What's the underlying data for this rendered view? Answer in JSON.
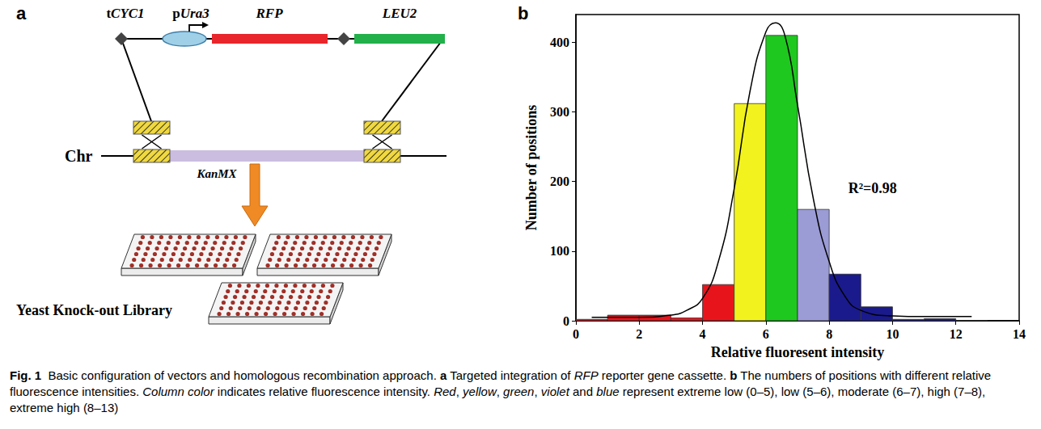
{
  "figure": {
    "panel_a": {
      "letter": "a",
      "labels": {
        "terminator": [
          {
            "text": "t",
            "style": "bold"
          },
          {
            "text": "CYC1",
            "style": "bold-italic"
          }
        ],
        "promoter": [
          {
            "text": "p",
            "style": "bold"
          },
          {
            "text": "Ura3",
            "style": "bold-italic"
          }
        ],
        "reporter": [
          {
            "text": "RFP",
            "style": "bold-italic"
          }
        ],
        "marker": [
          {
            "text": "LEU2",
            "style": "bold-italic"
          }
        ],
        "chromosome": [
          {
            "text": "Chr",
            "style": "bold"
          }
        ],
        "deletion": [
          {
            "text": "KanMX",
            "style": "bold-italic"
          }
        ],
        "library": [
          {
            "text": "Yeast Knock-out Library",
            "style": "bold"
          }
        ]
      }
    },
    "panel_b": {
      "letter": "b"
    },
    "caption": [
      {
        "text": "Fig. 1",
        "style": "bold"
      },
      {
        "text": "  Basic configuration of vectors and homologous recombination approach. ",
        "style": "normal"
      },
      {
        "text": "a",
        "style": "bold"
      },
      {
        "text": " Targeted integration of ",
        "style": "normal"
      },
      {
        "text": "RFP",
        "style": "italic"
      },
      {
        "text": " reporter gene cassette. ",
        "style": "normal"
      },
      {
        "text": "b",
        "style": "bold"
      },
      {
        "text": " The numbers of positions with different relative fluorescence intensities. ",
        "style": "normal"
      },
      {
        "text": "Column color",
        "style": "italic"
      },
      {
        "text": " indicates relative fluorescence intensity. ",
        "style": "normal"
      },
      {
        "text": "Red",
        "style": "italic"
      },
      {
        "text": ", ",
        "style": "normal"
      },
      {
        "text": "yellow",
        "style": "italic"
      },
      {
        "text": ", ",
        "style": "normal"
      },
      {
        "text": "green",
        "style": "italic"
      },
      {
        "text": ", ",
        "style": "normal"
      },
      {
        "text": "violet",
        "style": "italic"
      },
      {
        "text": " and ",
        "style": "normal"
      },
      {
        "text": "blue",
        "style": "italic"
      },
      {
        "text": " represent extreme low (0–5), low (5–6), moderate (6–7), high (7–8), extreme high (8–13)",
        "style": "normal"
      }
    ]
  },
  "chart_data": {
    "type": "histogram",
    "x_label": "Relative fluoresent intensity",
    "y_label": "Number of positions",
    "bins": [
      0,
      1,
      2,
      3,
      4,
      5,
      6,
      7,
      8,
      9,
      10,
      11,
      12,
      13
    ],
    "counts": [
      2,
      8,
      8,
      4,
      52,
      312,
      410,
      160,
      67,
      20,
      2,
      3,
      0
    ],
    "colors": [
      "#e8141c",
      "#e8141c",
      "#e8141c",
      "#e8141c",
      "#e8141c",
      "#f2f21e",
      "#1ec81e",
      "#9b9bd6",
      "#1a1a8c",
      "#1a1a8c",
      "#1a1a8c",
      "#1a1a8c",
      "#1a1a8c"
    ],
    "fit_curve": {
      "type": "line",
      "color": "#000000",
      "x": [
        0.5,
        2,
        3,
        3.5,
        4,
        4.5,
        5,
        5.5,
        6,
        6.3,
        6.6,
        7,
        7.5,
        8,
        8.5,
        9,
        10,
        11,
        12.5
      ],
      "values": [
        5,
        5,
        8,
        15,
        32,
        85,
        190,
        330,
        415,
        428,
        410,
        310,
        175,
        85,
        35,
        15,
        7,
        6,
        6
      ]
    },
    "annotations": [
      {
        "text": "R²=0.98",
        "x": 8.6,
        "y": 190
      }
    ],
    "xlim": [
      0,
      14
    ],
    "xticks": [
      0,
      2,
      4,
      6,
      8,
      10,
      12,
      14
    ],
    "ylim": [
      0,
      440
    ],
    "yticks": [
      0,
      100,
      200,
      300,
      400
    ],
    "grid": false
  }
}
